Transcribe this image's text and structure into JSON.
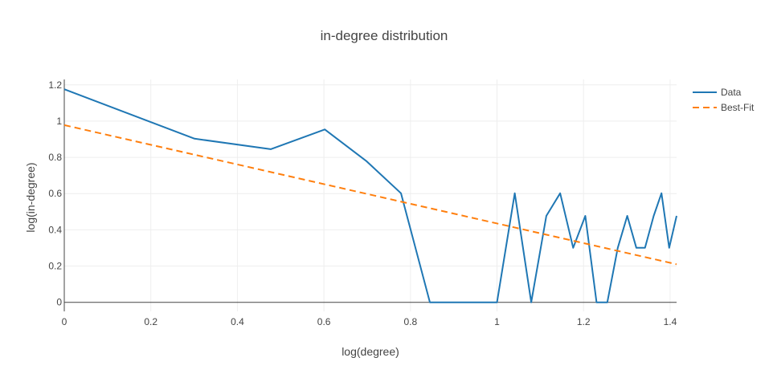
{
  "chart_data": {
    "type": "line",
    "title": "in-degree distribution",
    "xlabel": "log(degree)",
    "ylabel": "log(in-degree)",
    "xlim": [
      0,
      1.415
    ],
    "ylim": [
      -0.05,
      1.23
    ],
    "x_ticks": [
      "0",
      "0.2",
      "0.4",
      "0.6",
      "0.8",
      "1",
      "1.2",
      "1.4"
    ],
    "y_ticks": [
      "0",
      "0.2",
      "0.4",
      "0.6",
      "0.8",
      "1",
      "1.2"
    ],
    "grid": true,
    "legend_position": "top-right",
    "series": [
      {
        "name": "Data",
        "style": "solid",
        "color": "#1f77b4",
        "x": [
          0,
          0.301,
          0.477,
          0.602,
          0.699,
          0.778,
          0.845,
          0.903,
          0.954,
          1.0,
          1.041,
          1.079,
          1.114,
          1.146,
          1.176,
          1.204,
          1.23,
          1.255,
          1.279,
          1.301,
          1.322,
          1.342,
          1.362,
          1.38,
          1.398,
          1.415
        ],
        "y": [
          1.176,
          0.903,
          0.845,
          0.954,
          0.778,
          0.602,
          0.0,
          0.0,
          0.0,
          0.0,
          0.602,
          0.0,
          0.477,
          0.602,
          0.301,
          0.477,
          0.0,
          0.0,
          0.301,
          0.477,
          0.301,
          0.301,
          0.477,
          0.602,
          0.301,
          0.477
        ]
      },
      {
        "name": "Best-Fit",
        "style": "dash",
        "color": "#ff7f0e",
        "x": [
          0,
          1.415
        ],
        "y": [
          0.978,
          0.21
        ]
      }
    ]
  }
}
